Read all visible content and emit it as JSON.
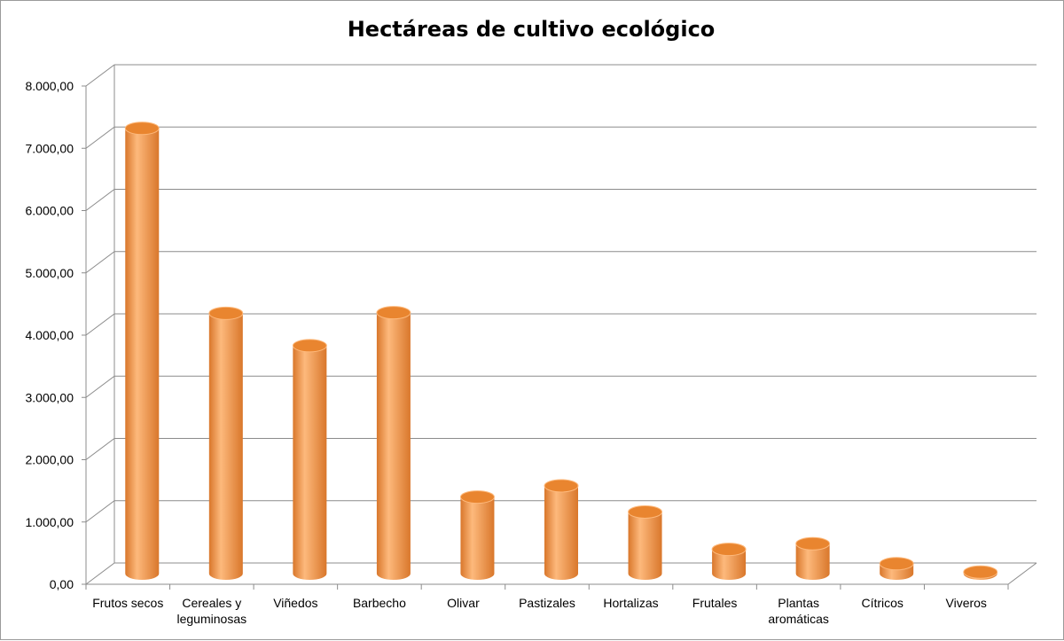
{
  "chart_data": {
    "type": "bar",
    "title": "Hectáreas de cultivo ecológico",
    "xlabel": "",
    "ylabel": "",
    "ylim": [
      0,
      8000
    ],
    "y_tick_step": 1000,
    "y_tick_labels": [
      "0,00",
      "1.000,00",
      "2.000,00",
      "3.000,00",
      "4.000,00",
      "5.000,00",
      "6.000,00",
      "7.000,00",
      "8.000,00"
    ],
    "categories": [
      [
        "Frutos secos"
      ],
      [
        "Cereales y",
        "leguminosas"
      ],
      [
        "Viñedos"
      ],
      [
        "Barbecho"
      ],
      [
        "Olivar"
      ],
      [
        "Pastizales"
      ],
      [
        "Hortalizas"
      ],
      [
        "Frutales"
      ],
      [
        "Plantas",
        "aromáticas"
      ],
      [
        "Cítricos"
      ],
      [
        "Viveros"
      ]
    ],
    "values": [
      7150,
      4180,
      3660,
      4190,
      1230,
      1410,
      990,
      390,
      480,
      160,
      25
    ],
    "grid": true,
    "legend": "none",
    "bar_shape": "cylinder",
    "bar_color": "#F79646",
    "bar_highlight": "#FDB97C",
    "bar_shadow": "#D9772B",
    "bar_top_color": "#E9852F"
  }
}
